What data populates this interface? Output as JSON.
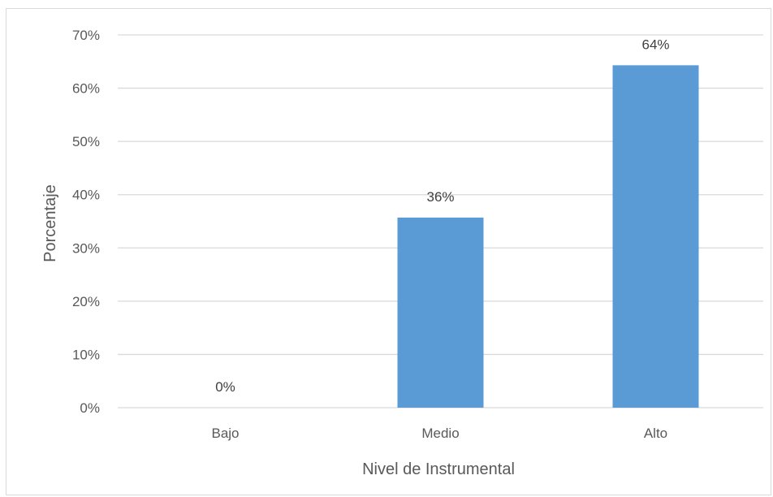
{
  "chart_data": {
    "type": "bar",
    "categories": [
      "Bajo",
      "Medio",
      "Alto"
    ],
    "values": [
      0,
      35.7,
      64.3
    ],
    "data_labels": [
      "0%",
      "36%",
      "64%"
    ],
    "xlabel": "Nivel de Instrumental",
    "ylabel": "Porcentaje",
    "ylim": [
      0,
      70
    ],
    "yticks": [
      0,
      10,
      20,
      30,
      40,
      50,
      60,
      70
    ],
    "ytick_labels": [
      "0%",
      "10%",
      "20%",
      "30%",
      "40%",
      "50%",
      "60%",
      "70%"
    ],
    "grid": true,
    "legend": "none",
    "bar_color": "#5b9bd5",
    "grid_color": "#d9d9d9"
  }
}
